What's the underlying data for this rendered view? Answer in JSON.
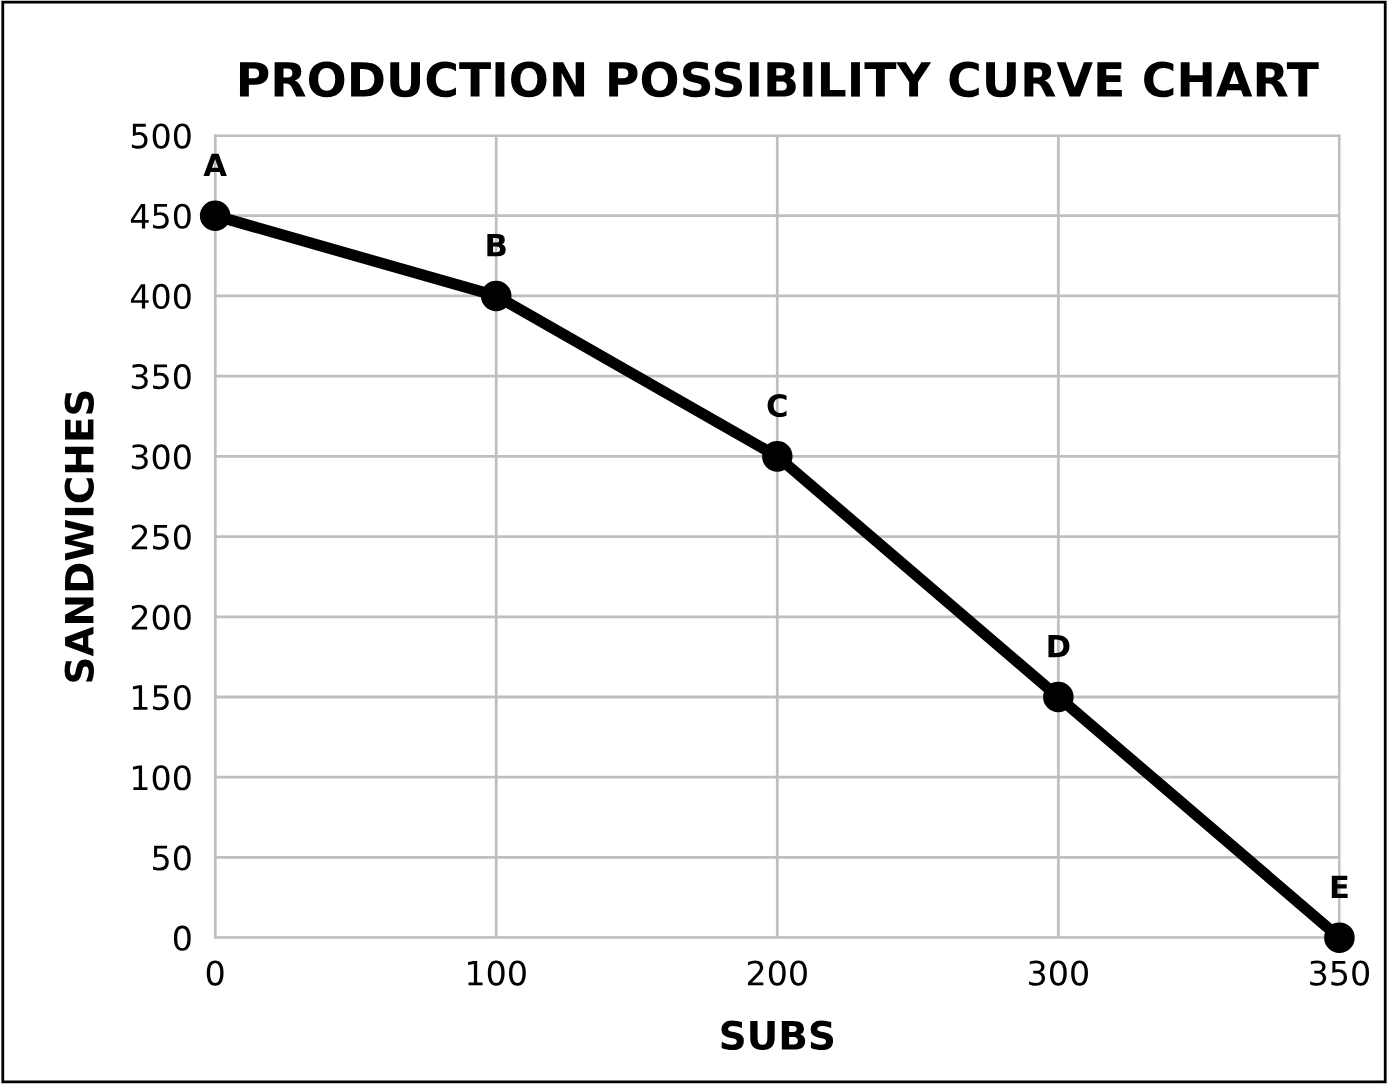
{
  "chart_data": {
    "type": "line",
    "title": "PRODUCTION POSSIBILITY CURVE CHART",
    "xlabel": "SUBS",
    "ylabel": "SANDWICHES",
    "categories": [
      "0",
      "100",
      "200",
      "300",
      "350"
    ],
    "series": [
      {
        "color": "#000000",
        "values": [
          450,
          400,
          300,
          150,
          0
        ]
      }
    ],
    "annotations": [
      {
        "text": "A",
        "x": "0",
        "y": 450
      },
      {
        "text": "B",
        "x": "100",
        "y": 400
      },
      {
        "text": "C",
        "x": "200",
        "y": 300
      },
      {
        "text": "D",
        "x": "300",
        "y": 150
      },
      {
        "text": "E",
        "x": "350",
        "y": 0
      }
    ],
    "ylim": [
      0,
      500
    ],
    "yticks": [
      0,
      50,
      100,
      150,
      200,
      250,
      300,
      350,
      400,
      450,
      500
    ],
    "grid": true,
    "marker": "circle",
    "line_style": "solid"
  }
}
